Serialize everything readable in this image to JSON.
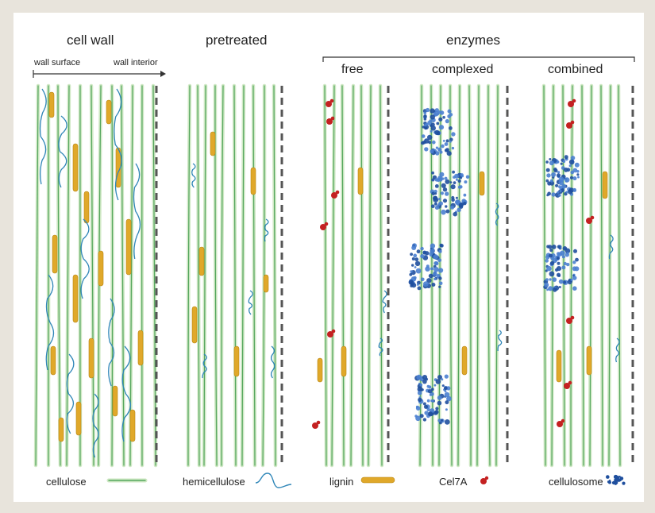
{
  "headings": {
    "cell_wall": "cell wall",
    "pretreated": "pretreated",
    "enzymes": "enzymes",
    "free": "free",
    "complexed": "complexed",
    "combined": "combined"
  },
  "arrow": {
    "left": "wall surface",
    "right": "wall interior"
  },
  "legend": {
    "cellulose": "cellulose",
    "hemicellulose": "hemicellulose",
    "lignin": "lignin",
    "cel7a": "Cel7A",
    "cellulosome": "cellulosome"
  },
  "colors": {
    "background": "#e8e4dc",
    "panel": "#ffffff",
    "cellulose_light": "#cfe8c4",
    "cellulose_dark": "#3e9a4b",
    "hemicellulose": "#2f86b8",
    "lignin": "#e0a82a",
    "cel7a": "#c42121",
    "cellulosome": "#1f4f9e",
    "dash": "#555555"
  },
  "icons": [
    "cellulose-icon",
    "hemicellulose-icon",
    "lignin-icon",
    "cel7a-icon",
    "cellulosome-icon"
  ]
}
